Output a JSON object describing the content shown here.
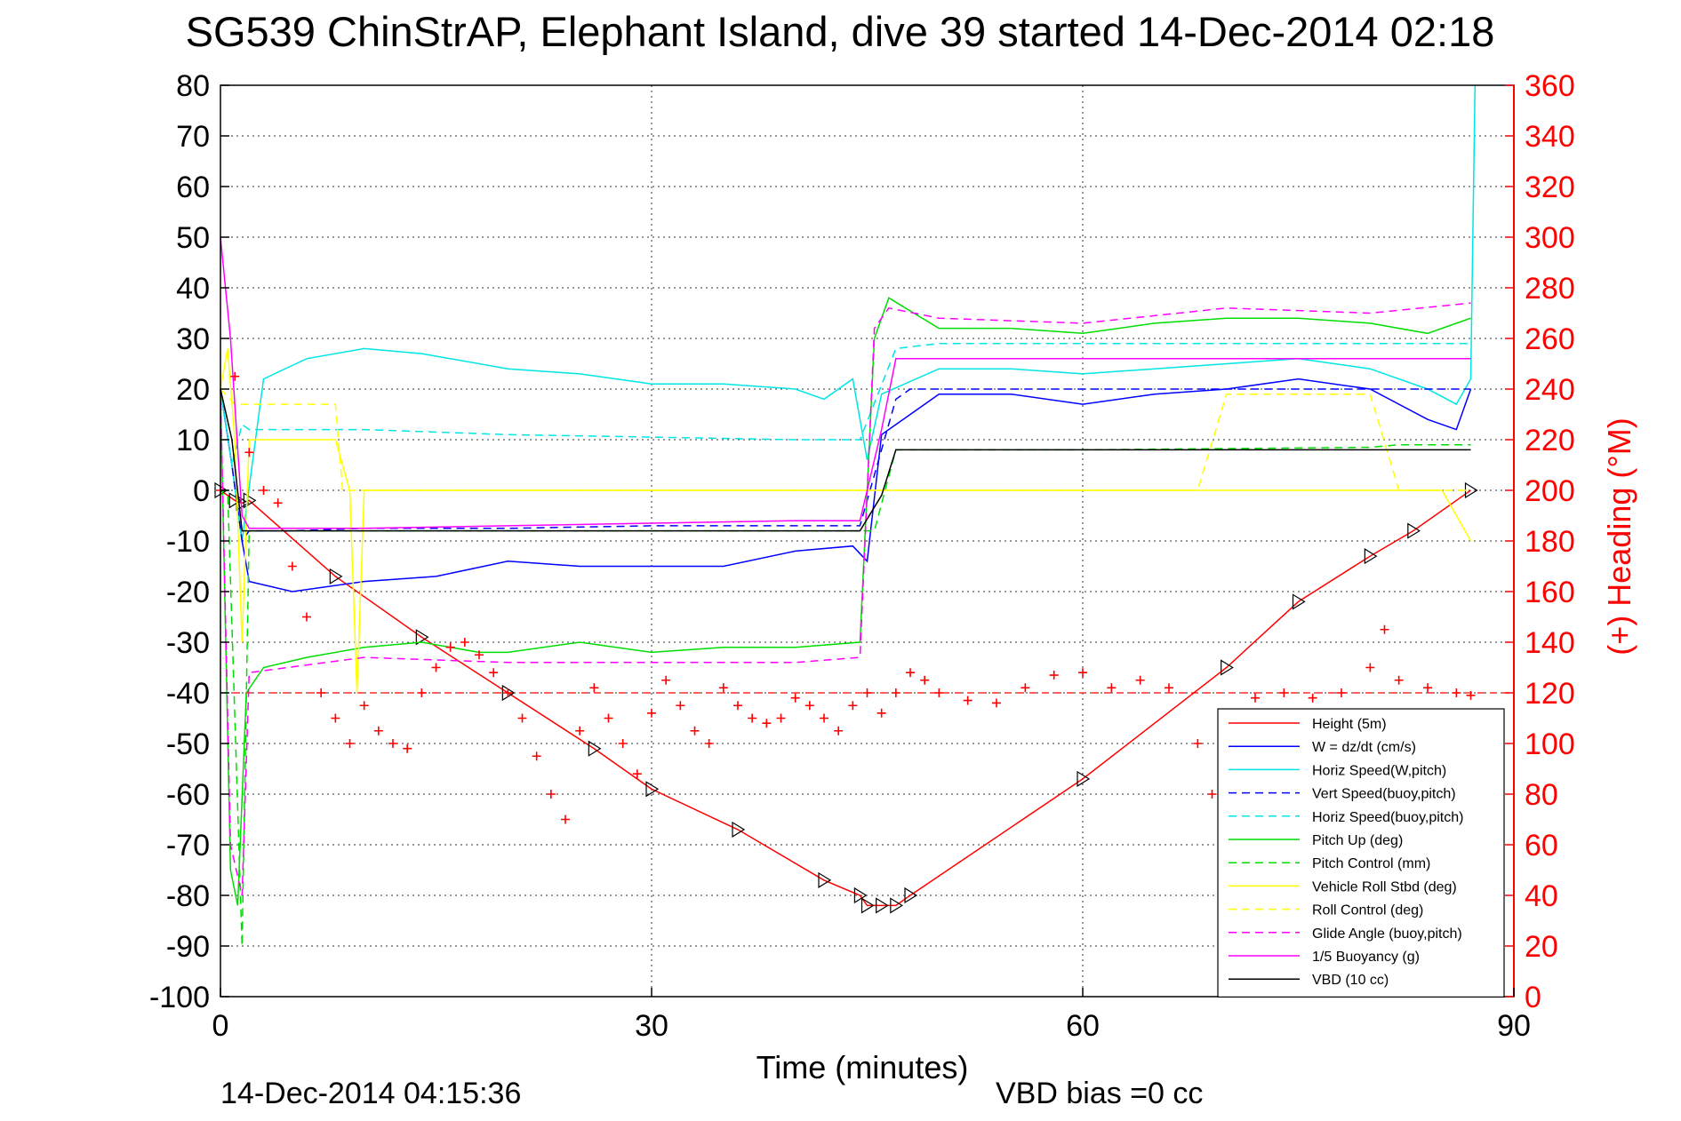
{
  "chart_data": {
    "type": "line",
    "title": "SG539 ChinStrAP, Elephant Island, dive 39 started 14-Dec-2014 02:18",
    "xlabel": "Time (minutes)",
    "ylabel_right": "(+) Heading (°M)",
    "footer_left": "14-Dec-2014 04:15:36",
    "footer_right": "VBD bias =0 cc",
    "xlim": [
      0,
      90
    ],
    "ylim": [
      -100,
      80
    ],
    "y2lim": [
      0,
      360
    ],
    "xticks": [
      0,
      30,
      60,
      90
    ],
    "yticks": [
      80,
      70,
      60,
      50,
      40,
      30,
      20,
      10,
      0,
      -10,
      -20,
      -30,
      -40,
      -50,
      -60,
      -70,
      -80,
      -90,
      -100
    ],
    "y2ticks": [
      360,
      340,
      320,
      300,
      280,
      260,
      240,
      220,
      200,
      180,
      160,
      140,
      120,
      100,
      80,
      60,
      40,
      20,
      0
    ],
    "grid": true,
    "legend_position": "lower-right",
    "heading_mean_deg": 120,
    "series": [
      {
        "name": "Height (5m)",
        "color": "#ff0000",
        "dash": "solid",
        "markers": "triangle",
        "x": [
          0,
          1,
          1.5,
          2,
          8,
          14,
          20,
          26,
          30,
          36,
          42,
          44.5,
          45,
          46,
          47,
          48,
          60,
          70,
          75,
          80,
          83,
          87
        ],
        "y": [
          0,
          -2,
          -2.5,
          -2,
          -17,
          -29,
          -40,
          -51,
          -59,
          -67,
          -77,
          -80,
          -82,
          -82,
          -82,
          -80,
          -57,
          -35,
          -22,
          -13,
          -8,
          0
        ]
      },
      {
        "name": "W = dz/dt (cm/s)",
        "color": "#0000ff",
        "dash": "solid",
        "x": [
          0,
          0.8,
          1.5,
          2,
          5,
          10,
          15,
          20,
          25,
          30,
          35,
          40,
          44,
          45,
          46,
          50,
          55,
          60,
          65,
          70,
          75,
          80,
          84,
          86,
          87
        ],
        "y": [
          20,
          5,
          -10,
          -18,
          -20,
          -18,
          -17,
          -14,
          -15,
          -15,
          -15,
          -12,
          -11,
          -14,
          11,
          19,
          19,
          17,
          19,
          20,
          22,
          20,
          14,
          12,
          20
        ]
      },
      {
        "name": "Horiz Speed(W,pitch)",
        "color": "#00e5e5",
        "dash": "solid",
        "x": [
          0,
          0.8,
          1.5,
          3,
          6,
          10,
          14,
          20,
          25,
          30,
          35,
          40,
          42,
          44,
          45,
          46,
          50,
          55,
          60,
          65,
          70,
          75,
          80,
          84,
          86,
          87,
          87.3
        ],
        "y": [
          20,
          5,
          -10,
          22,
          26,
          28,
          27,
          24,
          23,
          21,
          21,
          20,
          18,
          22,
          6,
          19,
          24,
          24,
          23,
          24,
          25,
          26,
          24,
          20,
          17,
          22,
          80
        ]
      },
      {
        "name": "Vert Speed(buoy,pitch)",
        "color": "#0000ff",
        "dash": "dashed",
        "x": [
          0,
          0.8,
          1.5,
          2,
          5,
          10,
          20,
          30,
          40,
          44.5,
          47,
          48,
          60,
          70,
          87
        ],
        "y": [
          20,
          5,
          -10,
          -8,
          -8,
          -7.5,
          -7.5,
          -7,
          -7,
          -7,
          18,
          20,
          20,
          20,
          20
        ]
      },
      {
        "name": "Horiz Speed(buoy,pitch)",
        "color": "#00e5e5",
        "dash": "dashed",
        "x": [
          0,
          0.8,
          1.5,
          2,
          10,
          20,
          30,
          40,
          44.5,
          47,
          50,
          60,
          70,
          80,
          87
        ],
        "y": [
          20,
          5,
          13,
          12,
          12,
          11,
          10.5,
          10,
          10,
          28,
          29,
          29,
          29,
          29,
          29
        ]
      },
      {
        "name": "Pitch Up (deg)",
        "color": "#00dd00",
        "dash": "solid",
        "x": [
          0,
          0.7,
          1.2,
          1.8,
          3,
          6,
          10,
          14,
          18,
          20,
          25,
          30,
          35,
          40,
          44.5,
          45.5,
          46.5,
          50,
          55,
          60,
          65,
          70,
          75,
          80,
          84,
          87
        ],
        "y": [
          20,
          -75,
          -82,
          -40,
          -35,
          -33,
          -31,
          -30,
          -32,
          -32,
          -30,
          -32,
          -31,
          -31,
          -30,
          30,
          38,
          32,
          32,
          31,
          33,
          34,
          34,
          33,
          31,
          34
        ]
      },
      {
        "name": "Pitch Control (mm)",
        "color": "#00dd00",
        "dash": "dashed",
        "x": [
          0,
          0.5,
          1.5,
          2,
          20,
          44.5,
          45.5,
          47,
          60,
          80,
          82,
          87
        ],
        "y": [
          0,
          0,
          -90,
          -8,
          -8,
          -8,
          -8,
          8,
          8,
          8.5,
          9,
          9
        ]
      },
      {
        "name": "Vehicle Roll Stbd (deg)",
        "color": "#ffff00",
        "dash": "solid",
        "x": [
          0,
          0.5,
          1,
          1.5,
          2,
          4,
          6,
          8,
          9,
          9.5,
          10,
          12,
          14,
          16,
          20,
          25,
          30,
          35,
          40,
          44.5,
          45,
          47,
          48,
          55,
          60,
          65,
          68,
          70,
          75,
          80,
          82,
          85,
          87
        ],
        "y": [
          20,
          28,
          10,
          -30,
          10,
          10,
          10,
          10,
          0,
          -40,
          0,
          0,
          0,
          0,
          0,
          0,
          0,
          0,
          0,
          0,
          0,
          0,
          0,
          0,
          0,
          0,
          0,
          0,
          0,
          0,
          0,
          0,
          -10
        ]
      },
      {
        "name": "Roll Control (deg)",
        "color": "#ffff00",
        "dash": "dashed",
        "x": [
          0,
          1,
          2,
          8,
          8.5,
          20,
          30,
          44.5,
          45,
          47,
          60,
          68,
          70,
          75,
          80,
          82,
          87
        ],
        "y": [
          20,
          17,
          17,
          17,
          0,
          0,
          0,
          0,
          0,
          0,
          0,
          0,
          19,
          19,
          19,
          0,
          0
        ]
      },
      {
        "name": "Glide Angle (buoy,pitch)",
        "color": "#ff00ff",
        "dash": "dashed",
        "x": [
          0,
          0.7,
          1.5,
          2,
          10,
          20,
          30,
          40,
          44.5,
          45.5,
          46.5,
          50,
          60,
          70,
          80,
          87
        ],
        "y": [
          20,
          -70,
          -80,
          -36,
          -33,
          -34,
          -34,
          -34,
          -33,
          32,
          36,
          34,
          33,
          36,
          35,
          37
        ]
      },
      {
        "name": "1/5 Buoyancy (g)",
        "color": "#ff00ff",
        "dash": "solid",
        "x": [
          0,
          0.7,
          1.5,
          2,
          10,
          20,
          30,
          40,
          44.5,
          46,
          47,
          50,
          60,
          70,
          80,
          87
        ],
        "y": [
          50,
          30,
          -5,
          -7.5,
          -7.5,
          -7,
          -6.5,
          -6,
          -6,
          12,
          26,
          26,
          26,
          26,
          26,
          26
        ]
      },
      {
        "name": "VBD (10 cc)",
        "color": "#000000",
        "dash": "solid",
        "x": [
          0,
          0.8,
          1.5,
          2,
          10,
          20,
          30,
          40,
          44.5,
          46,
          47,
          48,
          60,
          70,
          80,
          87
        ],
        "y": [
          20,
          10,
          -8,
          -8,
          -8,
          -8,
          -8,
          -8,
          -8,
          -1,
          8,
          8,
          8,
          8,
          8,
          8
        ]
      }
    ],
    "heading": {
      "name": "Heading",
      "color": "#ff0000",
      "marker": "+",
      "axis": "right",
      "x": [
        0,
        1,
        2,
        3,
        4,
        5,
        6,
        7,
        8,
        9,
        10,
        11,
        12,
        13,
        14,
        15,
        16,
        17,
        18,
        19,
        20,
        21,
        22,
        23,
        24,
        25,
        26,
        27,
        28,
        29,
        30,
        31,
        32,
        33,
        34,
        35,
        36,
        37,
        38,
        39,
        40,
        41,
        42,
        43,
        44,
        45,
        46,
        47,
        48,
        49,
        50,
        52,
        54,
        56,
        58,
        60,
        62,
        64,
        66,
        68,
        69,
        70,
        72,
        74,
        76,
        78,
        80,
        81,
        82,
        84,
        86,
        87
      ],
      "y": [
        200,
        245,
        215,
        200,
        195,
        170,
        150,
        120,
        110,
        100,
        115,
        105,
        100,
        98,
        120,
        130,
        138,
        140,
        135,
        128,
        120,
        110,
        95,
        80,
        70,
        105,
        122,
        110,
        100,
        88,
        112,
        125,
        115,
        105,
        100,
        122,
        115,
        110,
        108,
        110,
        118,
        115,
        110,
        105,
        115,
        120,
        112,
        120,
        128,
        125,
        120,
        117,
        116,
        122,
        127,
        128,
        122,
        125,
        122,
        100,
        80,
        100,
        118,
        120,
        118,
        120,
        130,
        145,
        125,
        122,
        120,
        119
      ]
    }
  }
}
